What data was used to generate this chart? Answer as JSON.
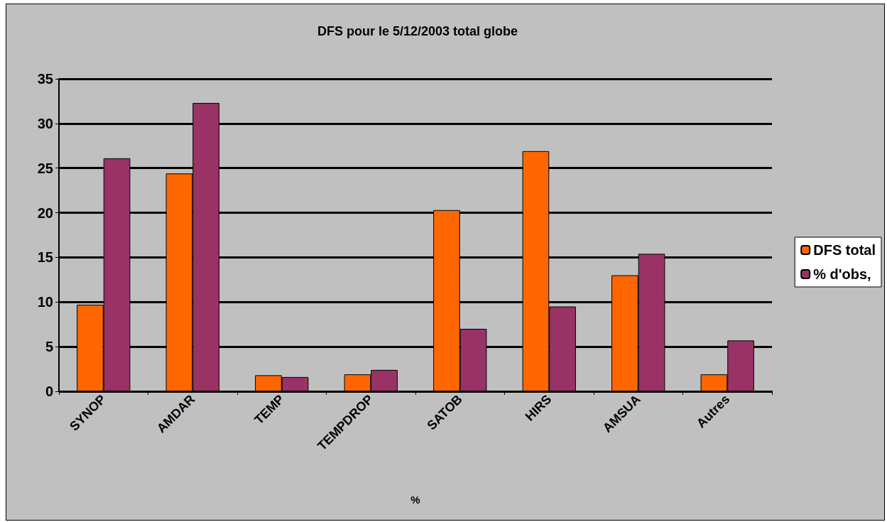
{
  "chart_data": {
    "type": "bar",
    "title": "DFS pour le 5/12/2003 total globe",
    "xlabel": "%",
    "categories": [
      "SYNOP",
      "AMDAR",
      "TEMP",
      "TEMPDROP",
      "SATOB",
      "HIRS",
      "AMSUA",
      "Autres"
    ],
    "series": [
      {
        "name": "DFS total",
        "color": "#ff6600",
        "values": [
          9.7,
          24.4,
          1.8,
          1.9,
          20.3,
          26.9,
          13.0,
          1.9
        ]
      },
      {
        "name": "% d'obs,",
        "color": "#993366",
        "values": [
          26.1,
          32.3,
          1.6,
          2.4,
          7.0,
          9.5,
          15.4,
          5.7
        ]
      }
    ],
    "ylim": [
      0,
      35
    ],
    "yticks": [
      0,
      5,
      10,
      15,
      20,
      25,
      30,
      35
    ],
    "grid": "y",
    "legend": "right"
  }
}
